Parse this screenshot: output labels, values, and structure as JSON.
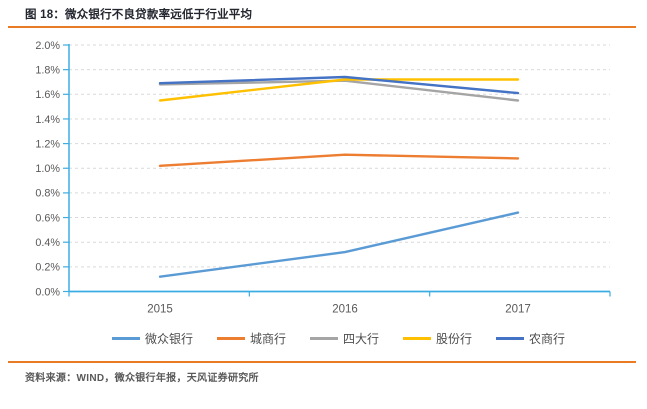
{
  "header": {
    "title": "图 18：微众银行不良贷款率远低于行业平均"
  },
  "footer": {
    "source": "资料来源：WIND，微众银行年报，天风证券研究所"
  },
  "colors": {
    "accent_rule": "#E97B25",
    "axis": "#3BADE3",
    "grid": "#D9D9D9",
    "tick_label": "#595959",
    "title_text": "#23262E",
    "footer_text": "#595959"
  },
  "chart_data": {
    "type": "line",
    "title": "微众银行不良贷款率远低于行业平均",
    "categories": [
      "2015",
      "2016",
      "2017"
    ],
    "series": [
      {
        "name": "微众银行",
        "color": "#5B9BD5",
        "values": [
          0.12,
          0.32,
          0.64
        ]
      },
      {
        "name": "城商行",
        "color": "#ED7D31",
        "values": [
          1.02,
          1.11,
          1.08
        ]
      },
      {
        "name": "四大行",
        "color": "#A5A5A5",
        "values": [
          1.68,
          1.71,
          1.55
        ]
      },
      {
        "name": "股份行",
        "color": "#FFC000",
        "values": [
          1.55,
          1.72,
          1.72
        ]
      },
      {
        "name": "农商行",
        "color": "#4472C4",
        "values": [
          1.69,
          1.74,
          1.61
        ]
      }
    ],
    "ylim": [
      0,
      2.0
    ],
    "y_ticks": [
      "0.0%",
      "0.2%",
      "0.4%",
      "0.6%",
      "0.8%",
      "1.0%",
      "1.2%",
      "1.4%",
      "1.6%",
      "1.8%",
      "2.0%"
    ],
    "xlabel": "",
    "ylabel": "",
    "grid": "horizontal-dashed",
    "legend_position": "bottom"
  }
}
